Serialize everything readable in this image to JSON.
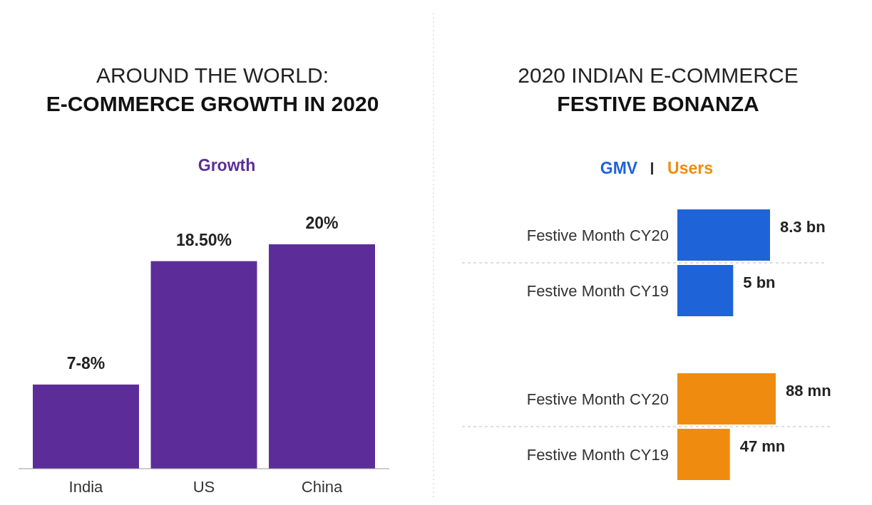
{
  "chart_data": [
    {
      "type": "bar",
      "title": "AROUND THE WORLD:",
      "subtitle": "E-COMMERCE GROWTH IN 2020",
      "categories": [
        "India",
        "US",
        "China"
      ],
      "legend": "top",
      "series": [
        {
          "name": "Growth",
          "color": "#5c2d98",
          "values": [
            7.5,
            18.5,
            20
          ],
          "value_labels": [
            "7-8%",
            "18.50%",
            "20%"
          ]
        }
      ]
    },
    {
      "type": "bar",
      "orientation": "horizontal",
      "title": "2020 INDIAN E-COMMERCE",
      "subtitle": "FESTIVE BONANZA",
      "categories": [
        "Festive Month CY20",
        "Festive Month CY19"
      ],
      "legend": "top",
      "series": [
        {
          "name": "GMV",
          "color": "#1f63d8",
          "values": [
            8.3,
            5
          ],
          "value_labels": [
            "8.3 bn",
            "5 bn"
          ]
        }
      ]
    },
    {
      "type": "bar",
      "orientation": "horizontal",
      "categories": [
        "Festive Month CY20",
        "Festive Month CY19"
      ],
      "legend": "top",
      "series": [
        {
          "name": "Users",
          "color": "#ef8c10",
          "values": [
            88,
            47
          ],
          "value_labels": [
            "88 mn",
            "47 mn"
          ]
        }
      ]
    }
  ]
}
